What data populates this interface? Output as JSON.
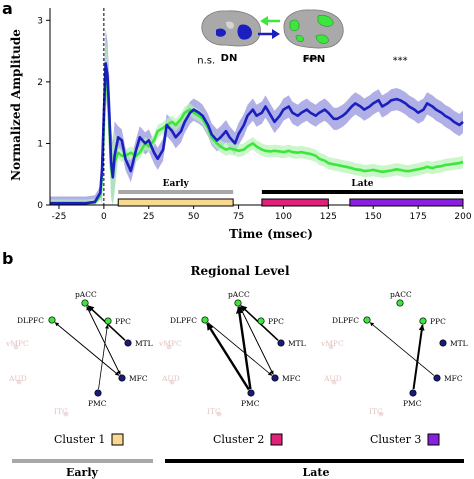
{
  "panels": {
    "a": "a",
    "b": "b"
  },
  "chart_data": {
    "type": "line",
    "xlabel": "Time (msec)",
    "ylabel": "Normalized Amplitude",
    "xlim": [
      -30,
      200
    ],
    "ylim": [
      0,
      3.2
    ],
    "xticks": [
      -25,
      0,
      25,
      50,
      75,
      100,
      125,
      150,
      175,
      200
    ],
    "yticks": [
      0,
      1,
      2,
      3
    ],
    "grid": false,
    "series": [
      {
        "name": "DN",
        "color": "#1a1fbf",
        "band_color": "#8f8fdc",
        "x": [
          -30,
          -25,
          -20,
          -15,
          -10,
          -5,
          -2,
          -1,
          0,
          1,
          2,
          3,
          4,
          5,
          6,
          8,
          10,
          12,
          15,
          18,
          20,
          23,
          25,
          28,
          30,
          33,
          35,
          38,
          40,
          43,
          45,
          48,
          50,
          53,
          55,
          58,
          60,
          63,
          65,
          68,
          70,
          73,
          75,
          78,
          80,
          83,
          85,
          88,
          90,
          93,
          95,
          98,
          100,
          103,
          105,
          108,
          110,
          113,
          115,
          118,
          120,
          123,
          125,
          128,
          130,
          133,
          135,
          138,
          140,
          143,
          145,
          148,
          150,
          153,
          155,
          158,
          160,
          163,
          165,
          168,
          170,
          173,
          175,
          178,
          180,
          183,
          185,
          188,
          190,
          193,
          195,
          198,
          200
        ],
        "y": [
          0.03,
          0.03,
          0.03,
          0.03,
          0.03,
          0.05,
          0.2,
          0.6,
          1.5,
          2.3,
          2.1,
          1.5,
          0.7,
          0.45,
          0.8,
          1.1,
          1.05,
          0.75,
          0.55,
          0.9,
          1.1,
          1.0,
          1.05,
          0.85,
          0.75,
          0.9,
          1.3,
          1.2,
          1.1,
          1.2,
          1.35,
          1.5,
          1.55,
          1.5,
          1.45,
          1.3,
          1.15,
          1.05,
          1.1,
          1.2,
          1.1,
          1.0,
          1.15,
          1.3,
          1.45,
          1.55,
          1.45,
          1.5,
          1.6,
          1.45,
          1.35,
          1.45,
          1.55,
          1.6,
          1.5,
          1.45,
          1.5,
          1.55,
          1.5,
          1.45,
          1.5,
          1.55,
          1.5,
          1.4,
          1.4,
          1.45,
          1.5,
          1.6,
          1.65,
          1.6,
          1.55,
          1.6,
          1.65,
          1.7,
          1.6,
          1.65,
          1.7,
          1.72,
          1.7,
          1.65,
          1.6,
          1.55,
          1.5,
          1.55,
          1.65,
          1.6,
          1.55,
          1.5,
          1.45,
          1.4,
          1.35,
          1.3,
          1.35
        ]
      },
      {
        "name": "FPN",
        "color": "#3ce63c",
        "band_color": "#b3f2b3",
        "x": [
          -30,
          -25,
          -20,
          -15,
          -10,
          -5,
          -2,
          -1,
          0,
          1,
          2,
          3,
          4,
          5,
          6,
          8,
          10,
          12,
          15,
          18,
          20,
          23,
          25,
          28,
          30,
          33,
          35,
          38,
          40,
          43,
          45,
          48,
          50,
          53,
          55,
          58,
          60,
          63,
          65,
          68,
          70,
          73,
          75,
          78,
          80,
          83,
          85,
          88,
          90,
          93,
          95,
          98,
          100,
          103,
          105,
          108,
          110,
          113,
          115,
          118,
          120,
          123,
          125,
          128,
          130,
          133,
          135,
          138,
          140,
          143,
          145,
          148,
          150,
          153,
          155,
          158,
          160,
          163,
          165,
          168,
          170,
          173,
          175,
          178,
          180,
          183,
          185,
          188,
          190,
          193,
          195,
          198,
          200
        ],
        "y": [
          0.03,
          0.03,
          0.03,
          0.03,
          0.03,
          0.04,
          0.15,
          0.5,
          1.3,
          2.2,
          2.0,
          1.3,
          0.6,
          0.45,
          0.7,
          0.85,
          0.8,
          0.8,
          0.85,
          0.8,
          0.85,
          1.0,
          0.95,
          1.05,
          1.2,
          1.25,
          1.3,
          1.35,
          1.3,
          1.4,
          1.5,
          1.55,
          1.5,
          1.45,
          1.4,
          1.25,
          1.1,
          1.0,
          0.95,
          0.9,
          0.92,
          0.9,
          0.88,
          0.9,
          0.95,
          1.0,
          0.95,
          0.9,
          0.88,
          0.87,
          0.88,
          0.87,
          0.86,
          0.88,
          0.86,
          0.85,
          0.86,
          0.84,
          0.83,
          0.8,
          0.75,
          0.72,
          0.68,
          0.66,
          0.65,
          0.63,
          0.62,
          0.6,
          0.58,
          0.57,
          0.55,
          0.56,
          0.57,
          0.55,
          0.54,
          0.55,
          0.56,
          0.58,
          0.57,
          0.55,
          0.55,
          0.57,
          0.58,
          0.6,
          0.62,
          0.6,
          0.62,
          0.63,
          0.65,
          0.66,
          0.67,
          0.68,
          0.7
        ]
      }
    ],
    "band_halfwidth": {
      "DN": 0.18,
      "FPN": 0.1
    },
    "annotations": [
      {
        "text": "n.s.",
        "x": 57,
        "y": 2.3
      },
      {
        "text": "***",
        "x": 115,
        "y": 2.3
      },
      {
        "text": "***",
        "x": 165,
        "y": 2.3
      }
    ],
    "time_windows": {
      "early_label": "Early",
      "late_label": "Late",
      "early_bar": {
        "from": 8,
        "to": 72,
        "color": "#a8a8a8"
      },
      "late_bar": {
        "from": 88,
        "to": 200,
        "color": "#000000"
      },
      "clusters": [
        {
          "from": 8,
          "to": 72,
          "color": "#f9d98f"
        },
        {
          "from": 88,
          "to": 125,
          "color": "#e0207a"
        },
        {
          "from": 137,
          "to": 200,
          "color": "#8b1fe0"
        }
      ]
    },
    "zero_line_color": "#000000"
  },
  "networks": {
    "dn_label": "DN",
    "fpn_label": "FPN",
    "dn_color": "#1a1fbf",
    "fpn_color": "#3ce63c"
  },
  "regional": {
    "title": "Regional Level",
    "node_labels": {
      "dlpfc": "DLPFC",
      "pacc": "pACC",
      "ppc": "PPC",
      "mtl": "MTL",
      "mfc": "MFC",
      "pmc": "PMC"
    },
    "ghost_labels": {
      "vmpfc": "vMPC",
      "aud": "AUD",
      "itc": "ITC",
      "ghost_fc": "DLPFC"
    },
    "clusters": [
      {
        "label": "Cluster 1",
        "color": "#f9d98f"
      },
      {
        "label": "Cluster 2",
        "color": "#e0207a"
      },
      {
        "label": "Cluster 3",
        "color": "#8b1fe0"
      }
    ],
    "periods": {
      "early": "Early",
      "late": "Late",
      "early_color": "#a8a8a8",
      "late_color": "#000000"
    }
  }
}
